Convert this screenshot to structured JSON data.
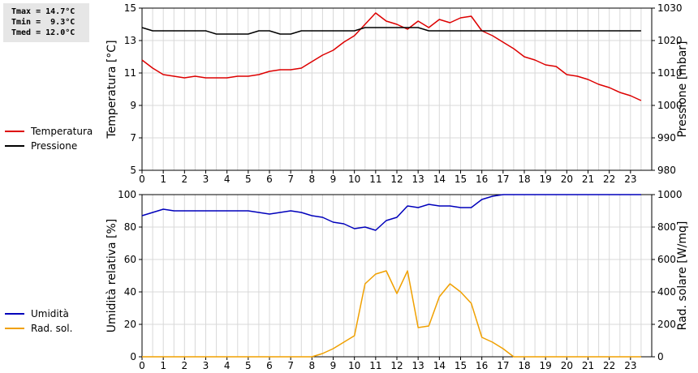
{
  "stats": {
    "tmax": "Tmax = 14.7°C",
    "tmin": "Tmin =  9.3°C",
    "tmed": "Tmed = 12.0°C"
  },
  "colors": {
    "temperature": "#dd0000",
    "pressure": "#000000",
    "humidity": "#0000bb",
    "solar": "#f0a000",
    "grid": "#d8d8d8"
  },
  "chart_data": [
    {
      "type": "line",
      "x_ticks": [
        0,
        1,
        2,
        3,
        4,
        5,
        6,
        7,
        8,
        9,
        10,
        11,
        12,
        13,
        14,
        15,
        16,
        17,
        18,
        19,
        20,
        21,
        22,
        23
      ],
      "x_range": [
        0,
        24
      ],
      "ylabel": "Temperatura [°C]",
      "ylim": [
        5,
        15
      ],
      "y_ticks": [
        5,
        7,
        9,
        11,
        13,
        15
      ],
      "ylabel_right": "Pressione [mbar]",
      "ylim_right": [
        980,
        1030
      ],
      "y_ticks_right": [
        980,
        990,
        1000,
        1010,
        1020,
        1030
      ],
      "grid": true,
      "legend_position": "left",
      "series": [
        {
          "name": "Temperatura",
          "axis": "left",
          "x": [
            0,
            0.5,
            1,
            1.5,
            2,
            2.5,
            3,
            3.5,
            4,
            4.5,
            5,
            5.5,
            6,
            6.5,
            7,
            7.5,
            8,
            8.5,
            9,
            9.5,
            10,
            10.5,
            11,
            11.5,
            12,
            12.5,
            13,
            13.5,
            14,
            14.5,
            15,
            15.5,
            16,
            16.5,
            17,
            17.5,
            18,
            18.5,
            19,
            19.5,
            20,
            20.5,
            21,
            21.5,
            22,
            22.5,
            23,
            23.5
          ],
          "y": [
            11.8,
            11.3,
            10.9,
            10.8,
            10.7,
            10.8,
            10.7,
            10.7,
            10.7,
            10.8,
            10.8,
            10.9,
            11.1,
            11.2,
            11.2,
            11.3,
            11.7,
            12.1,
            12.4,
            12.9,
            13.3,
            14.0,
            14.7,
            14.2,
            14.0,
            13.7,
            14.2,
            13.8,
            14.3,
            14.1,
            14.4,
            14.5,
            13.6,
            13.3,
            12.9,
            12.5,
            12.0,
            11.8,
            11.5,
            11.4,
            10.9,
            10.8,
            10.6,
            10.3,
            10.1,
            9.8,
            9.6,
            9.3
          ]
        },
        {
          "name": "Pressione",
          "axis": "right",
          "x": [
            0,
            0.5,
            1,
            1.5,
            2,
            2.5,
            3,
            3.5,
            4,
            4.5,
            5,
            5.5,
            6,
            6.5,
            7,
            7.5,
            8,
            8.5,
            9,
            9.5,
            10,
            10.5,
            11,
            11.5,
            12,
            12.5,
            13,
            13.5,
            14,
            14.5,
            15,
            15.5,
            16,
            16.5,
            17,
            17.5,
            18,
            18.5,
            19,
            19.5,
            20,
            20.5,
            21,
            21.5,
            22,
            22.5,
            23,
            23.5
          ],
          "y": [
            1024,
            1023,
            1023,
            1023,
            1023,
            1023,
            1023,
            1022,
            1022,
            1022,
            1022,
            1023,
            1023,
            1022,
            1022,
            1023,
            1023,
            1023,
            1023,
            1023,
            1023,
            1024,
            1024,
            1024,
            1024,
            1024,
            1024,
            1023,
            1023,
            1023,
            1023,
            1023,
            1023,
            1023,
            1023,
            1023,
            1023,
            1023,
            1023,
            1023,
            1023,
            1023,
            1023,
            1023,
            1023,
            1023,
            1023,
            1023
          ]
        }
      ]
    },
    {
      "type": "line",
      "x_ticks": [
        0,
        1,
        2,
        3,
        4,
        5,
        6,
        7,
        8,
        9,
        10,
        11,
        12,
        13,
        14,
        15,
        16,
        17,
        18,
        19,
        20,
        21,
        22,
        23
      ],
      "x_range": [
        0,
        24
      ],
      "ylabel": "Umidità relativa [%]",
      "ylim": [
        0,
        100
      ],
      "y_ticks": [
        0,
        20,
        40,
        60,
        80,
        100
      ],
      "ylabel_right": "Rad. solare [W/mq]",
      "ylim_right": [
        0,
        1000
      ],
      "y_ticks_right": [
        0,
        200,
        400,
        600,
        800,
        1000
      ],
      "grid": true,
      "legend_position": "left",
      "series": [
        {
          "name": "Umidità",
          "axis": "left",
          "x": [
            0,
            0.5,
            1,
            1.5,
            2,
            2.5,
            3,
            3.5,
            4,
            4.5,
            5,
            5.5,
            6,
            6.5,
            7,
            7.5,
            8,
            8.5,
            9,
            9.5,
            10,
            10.5,
            11,
            11.5,
            12,
            12.5,
            13,
            13.5,
            14,
            14.5,
            15,
            15.5,
            16,
            16.5,
            17,
            17.5,
            18,
            18.5,
            19,
            19.5,
            20,
            20.5,
            21,
            21.5,
            22,
            22.5,
            23,
            23.5
          ],
          "y": [
            87,
            89,
            91,
            90,
            90,
            90,
            90,
            90,
            90,
            90,
            90,
            89,
            88,
            89,
            90,
            89,
            87,
            86,
            83,
            82,
            79,
            80,
            78,
            84,
            86,
            93,
            92,
            94,
            93,
            93,
            92,
            92,
            97,
            99,
            100,
            100,
            100,
            100,
            100,
            100,
            100,
            100,
            100,
            100,
            100,
            100,
            100,
            100
          ]
        },
        {
          "name": "Rad. sol.",
          "axis": "right",
          "x": [
            0,
            0.5,
            1,
            1.5,
            2,
            2.5,
            3,
            3.5,
            4,
            4.5,
            5,
            5.5,
            6,
            6.5,
            7,
            7.5,
            8,
            8.5,
            9,
            9.5,
            10,
            10.5,
            11,
            11.5,
            12,
            12.5,
            13,
            13.5,
            14,
            14.5,
            15,
            15.5,
            16,
            16.5,
            17,
            17.5,
            18,
            18.5,
            19,
            19.5,
            20,
            20.5,
            21,
            21.5,
            22,
            22.5,
            23,
            23.5
          ],
          "y": [
            0,
            0,
            0,
            0,
            0,
            0,
            0,
            0,
            0,
            0,
            0,
            0,
            0,
            0,
            0,
            0,
            0,
            20,
            50,
            90,
            130,
            450,
            510,
            530,
            390,
            530,
            180,
            190,
            370,
            450,
            400,
            330,
            120,
            90,
            50,
            0,
            0,
            0,
            0,
            0,
            0,
            0,
            0,
            0,
            0,
            0,
            0,
            0
          ]
        }
      ]
    }
  ]
}
